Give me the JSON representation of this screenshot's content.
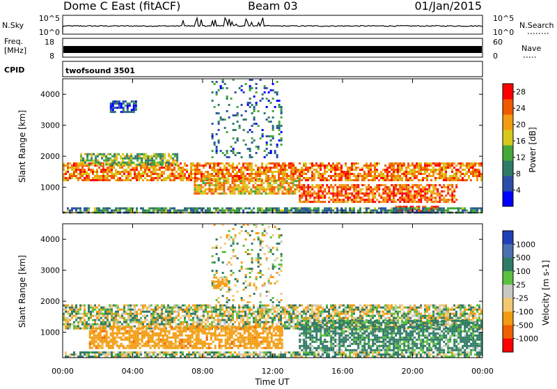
{
  "header": {
    "title": "Dome C East (fitACF)",
    "beam": "Beam 03",
    "date": "01/Jan/2015"
  },
  "top_panels": {
    "nsky": {
      "label": "N.Sky",
      "tick_top": "10^5",
      "tick_bottom": "10^0"
    },
    "nsearch": {
      "label": "N.Search",
      "tick_top": "10^5",
      "tick_bottom": "10^0"
    },
    "freq": {
      "label_line1": "Freq.",
      "label_line2": "[MHz]",
      "tick_top": "18",
      "tick_bottom": "8"
    },
    "nave": {
      "label": "Nave",
      "tick_top": "60",
      "tick_bottom": "0"
    },
    "cpid": {
      "label": "CPID",
      "value": "twofsound 3501"
    }
  },
  "chart_data": [
    {
      "type": "heatmap",
      "title": "",
      "xlabel": "Time UT",
      "ylabel": "Slant Range [km]",
      "xlim": [
        "00:00",
        "24:00"
      ],
      "ylim": [
        180,
        4500
      ],
      "x_ticks": [
        "00:00",
        "04:00",
        "08:00",
        "12:00",
        "16:00",
        "20:00",
        "00:00"
      ],
      "y_ticks": [
        1000,
        2000,
        3000,
        4000
      ],
      "colorbar": {
        "label": "Power [dB]",
        "ticks": [
          4,
          8,
          12,
          16,
          20,
          24,
          28
        ],
        "range": [
          0,
          30
        ],
        "colors": [
          "#0000ff",
          "#2b4fa8",
          "#2f7a66",
          "#44a83a",
          "#d8c81c",
          "#f39c12",
          "#f15a00",
          "#ff0000"
        ]
      },
      "bands": [
        {
          "t_start": 0.0,
          "t_end": 24.0,
          "range_low": 1200,
          "range_high": 1800,
          "value": 22
        },
        {
          "t_start": 1.0,
          "t_end": 6.5,
          "range_low": 1700,
          "range_high": 2100,
          "value": 14
        },
        {
          "t_start": 7.5,
          "t_end": 13.5,
          "range_low": 800,
          "range_high": 1300,
          "value": 20
        },
        {
          "t_start": 13.5,
          "t_end": 22.5,
          "range_low": 500,
          "range_high": 1100,
          "value": 24
        },
        {
          "t_start": 19.0,
          "t_end": 21.5,
          "range_low": 200,
          "range_high": 400,
          "value": 29
        },
        {
          "t_start": 0.0,
          "t_end": 24.0,
          "range_low": 200,
          "range_high": 350,
          "value": 10
        },
        {
          "t_start": 8.5,
          "t_end": 12.5,
          "range_low": 2000,
          "range_high": 4500,
          "value": 8
        },
        {
          "t_start": 2.7,
          "t_end": 4.2,
          "range_low": 3400,
          "range_high": 3800,
          "value": 6
        }
      ]
    },
    {
      "type": "heatmap",
      "title": "",
      "xlabel": "Time UT",
      "ylabel": "Slant Range [km]",
      "xlim": [
        "00:00",
        "24:00"
      ],
      "ylim": [
        180,
        4500
      ],
      "x_ticks": [
        "00:00",
        "04:00",
        "08:00",
        "12:00",
        "16:00",
        "20:00",
        "00:00"
      ],
      "y_ticks": [
        1000,
        2000,
        3000,
        4000
      ],
      "colorbar": {
        "label": "Velocity [m s-1]",
        "ticks": [
          1000,
          500,
          100,
          25,
          -25,
          -100,
          -500,
          -1000
        ],
        "colors": [
          "#2040b8",
          "#4a70b0",
          "#2f7a66",
          "#5cc040",
          "#c8c8c4",
          "#f2c870",
          "#f39c12",
          "#f06000",
          "#ff0000"
        ]
      },
      "bands": [
        {
          "t_start": 0.0,
          "t_end": 24.0,
          "range_low": 1100,
          "range_high": 1900,
          "value": 0
        },
        {
          "t_start": 1.5,
          "t_end": 12.5,
          "range_low": 500,
          "range_high": 1200,
          "value": -300
        },
        {
          "t_start": 13.5,
          "t_end": 24.0,
          "range_low": 400,
          "range_high": 1400,
          "value": 200
        },
        {
          "t_start": 0.0,
          "t_end": 24.0,
          "range_low": 200,
          "range_high": 380,
          "value": 80
        },
        {
          "t_start": 8.5,
          "t_end": 12.5,
          "range_low": 2000,
          "range_high": 4500,
          "value": 0
        },
        {
          "t_start": 8.6,
          "t_end": 9.4,
          "range_low": 2400,
          "range_high": 2800,
          "value": -200
        }
      ]
    }
  ]
}
